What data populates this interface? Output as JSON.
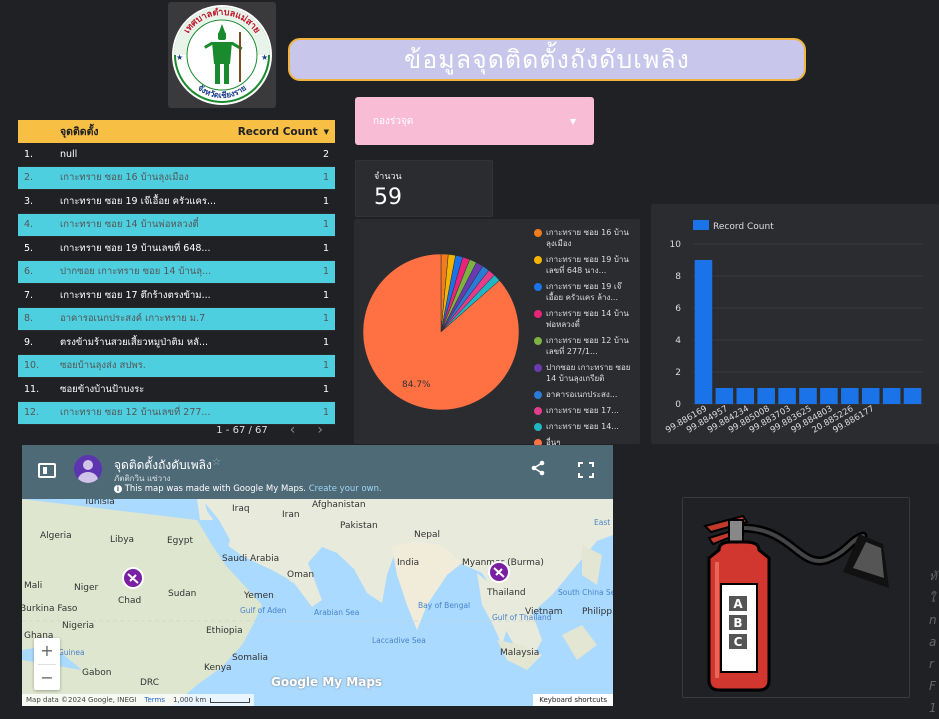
{
  "header": {
    "title": "ข้อมูลจุดติดตั้งถังดับเพลิง",
    "logo_text_top": "เทศบาลตำบลแม่สาย",
    "logo_text_bottom": "จังหวัดเชียงราย"
  },
  "filter": {
    "label": "กองร่วจุด"
  },
  "scorecard": {
    "label": "จำนวน",
    "value": "59"
  },
  "table": {
    "headers": [
      "จุดติดตั้ง",
      "Record Count"
    ],
    "rows": [
      {
        "n": "1.",
        "t": "null",
        "v": "2"
      },
      {
        "n": "2.",
        "t": "เกาะทราย ซอย 16 บ้านลุงเมือง",
        "v": "1"
      },
      {
        "n": "3.",
        "t": "เกาะทราย ซอย 19 เจ๊เอื้อย ครัวแคร...",
        "v": "1"
      },
      {
        "n": "4.",
        "t": "เกาะทราย ซอย 14 บ้านพ่อหลวงตี๋",
        "v": "1"
      },
      {
        "n": "5.",
        "t": "เกาะทราย ซอย 19 บ้านเลขที่ 648...",
        "v": "1"
      },
      {
        "n": "6.",
        "t": "ปากซอย เกาะทราย ซอย 14 บ้านลุ...",
        "v": "1"
      },
      {
        "n": "7.",
        "t": "เกาะทราย ซอย 17 ตึกร้างตรงข้าม...",
        "v": "1"
      },
      {
        "n": "8.",
        "t": "อาคารอเนกประสงค์ เกาะทราย ม.7",
        "v": "1"
      },
      {
        "n": "9.",
        "t": "ตรงข้ามร้านสวยเสี้ยวหมูป่าติม หลั...",
        "v": "1"
      },
      {
        "n": "10.",
        "t": "ซอยบ้านลุงส่ง สปพร.",
        "v": "1"
      },
      {
        "n": "11.",
        "t": "ซอยข้างบ้านป้าบงระ",
        "v": "1"
      },
      {
        "n": "12.",
        "t": "เกาะทราย ซอย 12 บ้านเลขที่ 277...",
        "v": "1"
      }
    ],
    "pager": "1 - 67 / 67"
  },
  "pie": {
    "big_label": "84.7%",
    "legend": [
      {
        "color": "#f07c1b",
        "text": "เกาะทราย ซอย 16 บ้านลุงเมือง"
      },
      {
        "color": "#f4b400",
        "text": "เกาะทราย ซอย 19 บ้านเลขที่ 648 นาง..."
      },
      {
        "color": "#1a73e8",
        "text": "เกาะทราย ซอย 19 เจ๊เอื้อย ครัวแคร ล้าง..."
      },
      {
        "color": "#e8247a",
        "text": "เกาะทราย ซอย 14 บ้านพ่อหลวงตี๋"
      },
      {
        "color": "#7cb342",
        "text": "เกาะทราย ซอย 12 บ้านเลขที่ 277/1..."
      },
      {
        "color": "#6a3bb0",
        "text": "ปากซอย เกาะทราย ซอย 14 บ้านลุงเกรียติ"
      },
      {
        "color": "#2a7bd6",
        "text": "อาคารอเนกประสง..."
      },
      {
        "color": "#e33d8b",
        "text": "เกาะทราย ซอย 17..."
      },
      {
        "color": "#1fb5c2",
        "text": "เกาะทราย ซอย 14..."
      },
      {
        "color": "#ff7043",
        "text": "อื่นๆ"
      }
    ]
  },
  "chart_data": {
    "type": "bar",
    "legend": "Record Count",
    "categories": [
      "99.886169",
      "99.884957",
      "99.884234",
      "99.885008",
      "99.883703",
      "99.883625",
      "99.884803",
      "20.885226",
      "99.886177",
      "",
      ""
    ],
    "values": [
      9,
      1,
      1,
      1,
      1,
      1,
      1,
      1,
      1,
      1,
      1
    ],
    "ylim": [
      0,
      10
    ],
    "yticks": [
      "0",
      "2",
      "4",
      "6",
      "8",
      "10"
    ],
    "color": "#1a73e8"
  },
  "map": {
    "title": "จุดติดตั้งถังดับเพลิง",
    "subtitle": "ภัตติกวิน แซ่วาง",
    "info": "This map was made with Google My Maps.",
    "info_link": "Create your own.",
    "labels": [
      "Tunisia",
      "Iraq",
      "Iran",
      "Afghanistan",
      "Pakistan",
      "Nepal",
      "Algeria",
      "Libya",
      "Egypt",
      "Saudi Arabia",
      "Oman",
      "India",
      "Myanmar (Burma)",
      "Mali",
      "Niger",
      "Chad",
      "Sudan",
      "Yemen",
      "Thailand",
      "Vietnam",
      "Philipp",
      "Burkina Faso",
      "Nigeria",
      "Ethiopia",
      "Ghana",
      "Somalia",
      "Malaysia",
      "Gabon",
      "Kenya",
      "DRC",
      "Gulf of Aden",
      "Arabian Sea",
      "Bay of Bengal",
      "Laccadive Sea",
      "South China Sea",
      "Gulf of Thailand",
      "Guinea",
      "East"
    ],
    "brand": "Google My Maps",
    "attribution": "Map data ©2024 Google, INEGI",
    "terms": "Terms",
    "scale": "1,000 km",
    "shortcuts": "Keyboard shortcuts",
    "zoom_in": "+",
    "zoom_out": "−"
  },
  "extinguisher": {
    "letters": [
      "A",
      "B",
      "C"
    ]
  },
  "side_text": [
    "ทั",
    "ใ",
    "n",
    "a",
    "r",
    "F",
    "1"
  ]
}
